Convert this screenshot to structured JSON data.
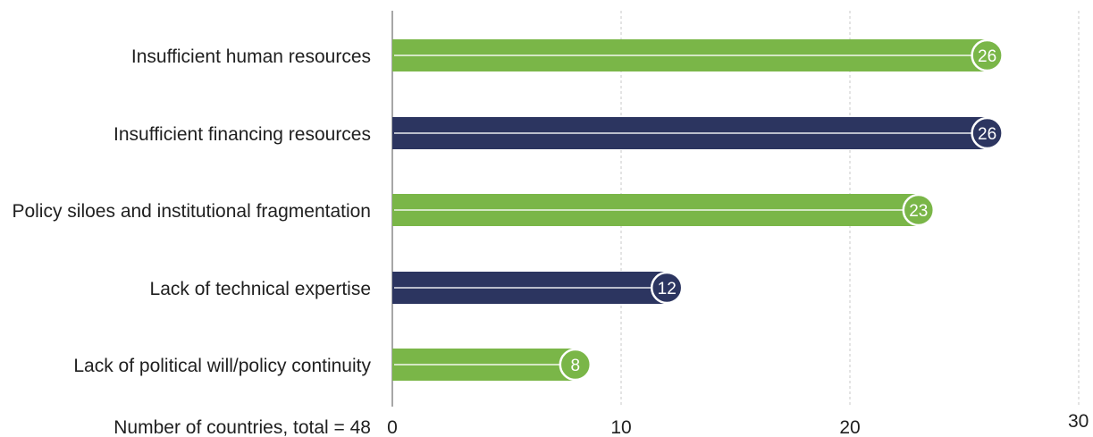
{
  "chart_data": {
    "type": "bar",
    "orientation": "horizontal",
    "categories": [
      "Insufficient human resources",
      "Insufficient financing resources",
      "Policy siloes and institutional fragmentation",
      "Lack of technical expertise",
      "Lack of political will/policy continuity"
    ],
    "values": [
      26,
      26,
      23,
      12,
      8
    ],
    "bar_colors": [
      "#7ab648",
      "#2c3560",
      "#7ab648",
      "#2c3560",
      "#7ab648"
    ],
    "xlabel": "Number of countries, total = 48",
    "xlim": [
      0,
      30
    ],
    "xticks": [
      0,
      10,
      20,
      30
    ],
    "grid": "vertical dashed",
    "legend": "none"
  }
}
